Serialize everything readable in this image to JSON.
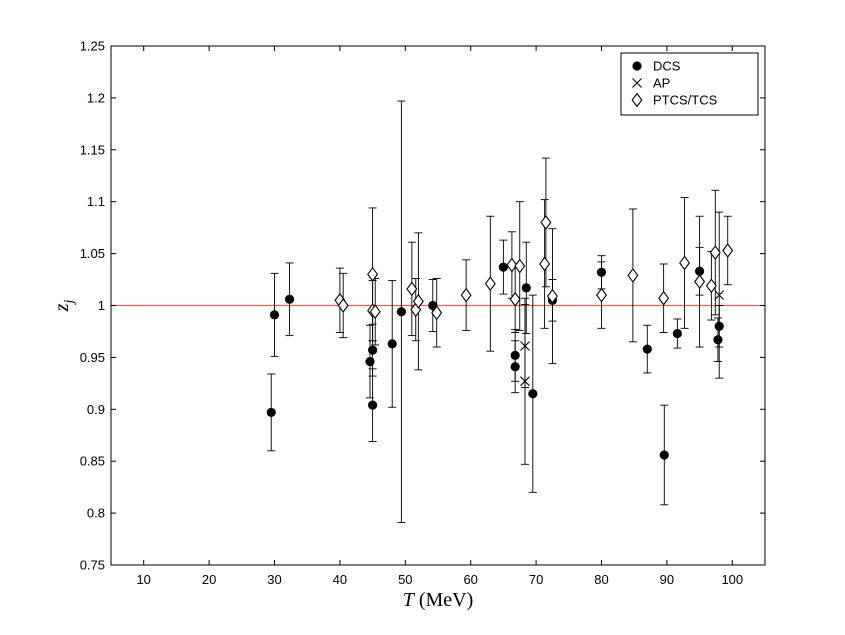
{
  "chart_data": {
    "type": "scatter",
    "xlabel": "T (MeV)",
    "ylabel": "z_j",
    "xlim": [
      5,
      105
    ],
    "ylim": [
      0.75,
      1.25
    ],
    "xticks": [
      10,
      20,
      30,
      40,
      50,
      60,
      70,
      80,
      90,
      100
    ],
    "yticks": [
      0.75,
      0.8,
      0.85,
      0.9,
      0.95,
      1,
      1.05,
      1.1,
      1.15,
      1.2,
      1.25
    ],
    "xtick_labels": [
      "10",
      "20",
      "30",
      "40",
      "50",
      "60",
      "70",
      "80",
      "90",
      "100"
    ],
    "ytick_labels": [
      "0.75",
      "0.8",
      "0.85",
      "0.9",
      "0.95",
      "1",
      "1.05",
      "1.1",
      "1.15",
      "1.2",
      "1.25"
    ],
    "reference_line": {
      "y": 1.0,
      "color": "#e06060"
    },
    "legend": {
      "position": "top-right"
    },
    "grid": false,
    "series": [
      {
        "name": "DCS",
        "marker": "filled-circle",
        "points": [
          {
            "x": 29.5,
            "y": 0.897,
            "err_lo": 0.037,
            "err_hi": 0.037
          },
          {
            "x": 30.0,
            "y": 0.991,
            "err_lo": 0.04,
            "err_hi": 0.04
          },
          {
            "x": 32.3,
            "y": 1.006,
            "err_lo": 0.035,
            "err_hi": 0.035
          },
          {
            "x": 44.6,
            "y": 0.946,
            "err_lo": 0.035,
            "err_hi": 0.035
          },
          {
            "x": 45.0,
            "y": 0.957,
            "err_lo": 0.025,
            "err_hi": 0.025
          },
          {
            "x": 45.0,
            "y": 0.904,
            "err_lo": 0.035,
            "err_hi": 0.035
          },
          {
            "x": 48.0,
            "y": 0.963,
            "err_lo": 0.061,
            "err_hi": 0.061
          },
          {
            "x": 49.4,
            "y": 0.994,
            "err_lo": 0.203,
            "err_hi": 0.203
          },
          {
            "x": 54.2,
            "y": 1.0,
            "err_lo": 0.025,
            "err_hi": 0.025
          },
          {
            "x": 65.0,
            "y": 1.037,
            "err_lo": 0.026,
            "err_hi": 0.026
          },
          {
            "x": 66.8,
            "y": 0.952,
            "err_lo": 0.025,
            "err_hi": 0.025
          },
          {
            "x": 66.8,
            "y": 0.941,
            "err_lo": 0.025,
            "err_hi": 0.025
          },
          {
            "x": 68.5,
            "y": 1.017,
            "err_lo": 0.044,
            "err_hi": 0.044
          },
          {
            "x": 69.5,
            "y": 0.915,
            "err_lo": 0.095,
            "err_hi": 0.095
          },
          {
            "x": 72.5,
            "y": 1.005,
            "err_lo": 0.02,
            "err_hi": 0.02
          },
          {
            "x": 80.0,
            "y": 1.032,
            "err_lo": 0.016,
            "err_hi": 0.016
          },
          {
            "x": 87.0,
            "y": 0.958,
            "err_lo": 0.023,
            "err_hi": 0.023
          },
          {
            "x": 89.6,
            "y": 0.856,
            "err_lo": 0.048,
            "err_hi": 0.048
          },
          {
            "x": 91.6,
            "y": 0.973,
            "err_lo": 0.014,
            "err_hi": 0.014
          },
          {
            "x": 95.0,
            "y": 1.033,
            "err_lo": 0.023,
            "err_hi": 0.023
          },
          {
            "x": 97.8,
            "y": 0.967,
            "err_lo": 0.021,
            "err_hi": 0.021
          },
          {
            "x": 98.0,
            "y": 0.98,
            "err_lo": 0.02,
            "err_hi": 0.02
          }
        ]
      },
      {
        "name": "AP",
        "marker": "cross",
        "points": [
          {
            "x": 68.3,
            "y": 0.961,
            "err_lo": 0.04,
            "err_hi": 0.04
          },
          {
            "x": 68.3,
            "y": 0.927,
            "err_lo": 0.08,
            "err_hi": 0.08
          },
          {
            "x": 98.0,
            "y": 1.01,
            "err_lo": 0.08,
            "err_hi": 0.08
          }
        ]
      },
      {
        "name": "PTCS/TCS",
        "marker": "open-diamond",
        "points": [
          {
            "x": 40.0,
            "y": 1.005,
            "err_lo": 0.031,
            "err_hi": 0.031
          },
          {
            "x": 40.5,
            "y": 1.0,
            "err_lo": 0.031,
            "err_hi": 0.031
          },
          {
            "x": 45.0,
            "y": 1.03,
            "err_lo": 0.064,
            "err_hi": 0.064
          },
          {
            "x": 45.0,
            "y": 0.995,
            "err_lo": 0.029,
            "err_hi": 0.029
          },
          {
            "x": 45.4,
            "y": 0.994,
            "err_lo": 0.032,
            "err_hi": 0.032
          },
          {
            "x": 51.0,
            "y": 1.016,
            "err_lo": 0.045,
            "err_hi": 0.045
          },
          {
            "x": 51.6,
            "y": 0.996,
            "err_lo": 0.03,
            "err_hi": 0.03
          },
          {
            "x": 52.0,
            "y": 1.004,
            "err_lo": 0.066,
            "err_hi": 0.066
          },
          {
            "x": 54.8,
            "y": 0.993,
            "err_lo": 0.033,
            "err_hi": 0.033
          },
          {
            "x": 59.3,
            "y": 1.01,
            "err_lo": 0.034,
            "err_hi": 0.034
          },
          {
            "x": 63.0,
            "y": 1.021,
            "err_lo": 0.065,
            "err_hi": 0.065
          },
          {
            "x": 66.3,
            "y": 1.039,
            "err_lo": 0.032,
            "err_hi": 0.032
          },
          {
            "x": 66.8,
            "y": 1.006,
            "err_lo": 0.032,
            "err_hi": 0.032
          },
          {
            "x": 67.5,
            "y": 1.038,
            "err_lo": 0.062,
            "err_hi": 0.062
          },
          {
            "x": 71.3,
            "y": 1.04,
            "err_lo": 0.062,
            "err_hi": 0.062
          },
          {
            "x": 71.5,
            "y": 1.08,
            "err_lo": 0.062,
            "err_hi": 0.062
          },
          {
            "x": 72.5,
            "y": 1.009,
            "err_lo": 0.065,
            "err_hi": 0.065
          },
          {
            "x": 80.0,
            "y": 1.01,
            "err_lo": 0.032,
            "err_hi": 0.032
          },
          {
            "x": 84.8,
            "y": 1.029,
            "err_lo": 0.064,
            "err_hi": 0.064
          },
          {
            "x": 89.5,
            "y": 1.007,
            "err_lo": 0.033,
            "err_hi": 0.033
          },
          {
            "x": 92.7,
            "y": 1.041,
            "err_lo": 0.063,
            "err_hi": 0.063
          },
          {
            "x": 95.0,
            "y": 1.023,
            "err_lo": 0.063,
            "err_hi": 0.063
          },
          {
            "x": 96.8,
            "y": 1.019,
            "err_lo": 0.033,
            "err_hi": 0.033
          },
          {
            "x": 97.4,
            "y": 1.051,
            "err_lo": 0.06,
            "err_hi": 0.06
          },
          {
            "x": 99.3,
            "y": 1.053,
            "err_lo": 0.033,
            "err_hi": 0.033
          }
        ]
      }
    ]
  }
}
